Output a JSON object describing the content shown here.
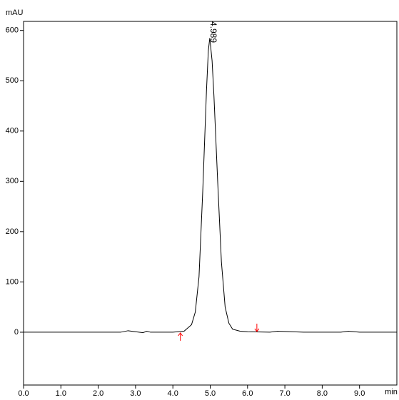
{
  "chart_data": {
    "type": "line",
    "y_label": "mAU",
    "x_label": "min",
    "x": [
      0,
      2.6,
      2.8,
      3.0,
      3.2,
      3.3,
      3.4,
      4.0,
      4.3,
      4.5,
      4.6,
      4.7,
      4.8,
      4.9,
      4.95,
      4.989,
      5.05,
      5.1,
      5.2,
      5.3,
      5.4,
      5.5,
      5.6,
      5.8,
      6.0,
      6.6,
      6.8,
      7.5,
      8.5,
      8.7,
      9.0,
      10.0
    ],
    "series": [
      {
        "color": "#000000",
        "values": [
          0,
          0,
          3,
          1,
          -1,
          2,
          0,
          0,
          2,
          15,
          40,
          110,
          280,
          480,
          560,
          585,
          540,
          470,
          300,
          140,
          50,
          18,
          6,
          2,
          1,
          0,
          2,
          0,
          0,
          2,
          0,
          0
        ]
      }
    ],
    "peak_label": {
      "x": 4.989,
      "label": "4.989"
    },
    "markers": [
      {
        "x": 4.2,
        "direction": "up"
      },
      {
        "x": 6.25,
        "direction": "down"
      }
    ],
    "marker_color": "#ff0000",
    "xlim": [
      0,
      10
    ],
    "ylim": [
      -105,
      618
    ],
    "xticks": [
      {
        "value": 0,
        "label": "0.0"
      },
      {
        "value": 1,
        "label": "1.0"
      },
      {
        "value": 2,
        "label": "2.0"
      },
      {
        "value": 3,
        "label": "3.0"
      },
      {
        "value": 4,
        "label": "4.0"
      },
      {
        "value": 5,
        "label": "5.0"
      },
      {
        "value": 6,
        "label": "6.0"
      },
      {
        "value": 7,
        "label": "7.0"
      },
      {
        "value": 8,
        "label": "8.0"
      },
      {
        "value": 9,
        "label": "9.0"
      }
    ],
    "yticks": [
      0,
      100,
      200,
      300,
      400,
      500,
      600
    ]
  }
}
